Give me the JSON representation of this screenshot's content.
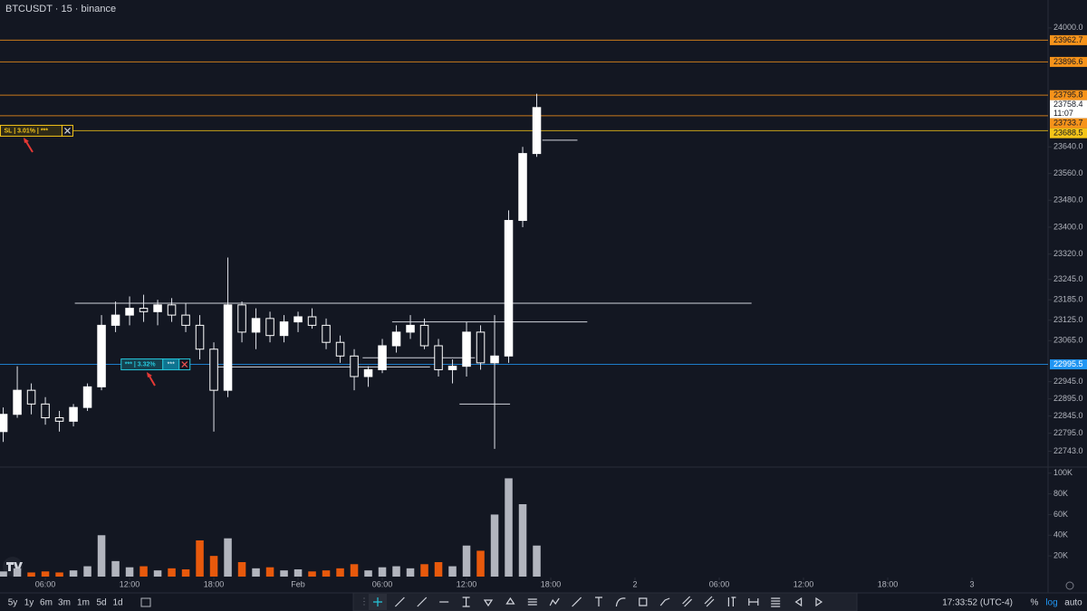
{
  "chart_data": [
    {
      "type": "candlestick",
      "title": "BTCUSDT · 15 · binance",
      "x": [
        3,
        4,
        5,
        6,
        7,
        8,
        9,
        10,
        11,
        12,
        13,
        14,
        15,
        16,
        17,
        18,
        19,
        20,
        21,
        22,
        23,
        24,
        25,
        26,
        27,
        28,
        29,
        30,
        31,
        32,
        33,
        34,
        35,
        36,
        37,
        38,
        39,
        40,
        41
      ],
      "open": [
        22800,
        22850,
        22920,
        22880,
        22840,
        22830,
        22870,
        22930,
        23110,
        23140,
        23160,
        23150,
        23170,
        23140,
        23110,
        23040,
        22920,
        23170,
        23090,
        23130,
        23080,
        23120,
        23135,
        23110,
        23060,
        23020,
        22960,
        22980,
        23050,
        23090,
        23110,
        23050,
        22980,
        22990,
        23090,
        23000,
        23020,
        23420,
        23620
      ],
      "high": [
        22870,
        22990,
        22940,
        22900,
        22860,
        22880,
        22940,
        23140,
        23180,
        23195,
        23200,
        23185,
        23190,
        23175,
        23140,
        23060,
        23310,
        23180,
        23160,
        23150,
        23140,
        23150,
        23160,
        23130,
        23080,
        23040,
        22990,
        23070,
        23110,
        23140,
        23130,
        23070,
        23010,
        23120,
        23110,
        23140,
        23450,
        23640,
        23800
      ],
      "low": [
        22770,
        22840,
        22850,
        22820,
        22800,
        22815,
        22860,
        22920,
        23090,
        23110,
        23120,
        23110,
        23120,
        23090,
        23010,
        22800,
        22900,
        23060,
        23040,
        23060,
        23060,
        23090,
        23100,
        23040,
        23000,
        22920,
        22930,
        22970,
        23030,
        23070,
        23040,
        22960,
        22940,
        22960,
        22980,
        22750,
        23000,
        23400,
        23610
      ],
      "close": [
        22850,
        22920,
        22880,
        22840,
        22830,
        22870,
        22930,
        23110,
        23140,
        23160,
        23150,
        23170,
        23140,
        23110,
        23040,
        22920,
        23170,
        23090,
        23130,
        23080,
        23120,
        23135,
        23110,
        23060,
        23020,
        22960,
        22980,
        23050,
        23090,
        23110,
        23050,
        22980,
        22990,
        23090,
        23000,
        23020,
        23420,
        23620,
        23758.4
      ],
      "up_color": "#ffffff",
      "down_color": "#131722",
      "wick_color": "#e0e3eb",
      "log": true,
      "xlim": [
        2.77,
        77.42
      ],
      "xticks": [
        {
          "value": 6,
          "label": "06:00"
        },
        {
          "value": 12,
          "label": "12:00"
        },
        {
          "value": 18,
          "label": "18:00"
        },
        {
          "value": 24,
          "label": "Feb"
        },
        {
          "value": 30,
          "label": "06:00"
        },
        {
          "value": 36,
          "label": "12:00"
        },
        {
          "value": 42,
          "label": "18:00"
        },
        {
          "value": 48,
          "label": "2"
        },
        {
          "value": 54,
          "label": "06:00"
        },
        {
          "value": 60,
          "label": "12:00"
        },
        {
          "value": 66,
          "label": "18:00"
        },
        {
          "value": 72,
          "label": "3"
        }
      ],
      "ylim": [
        22700,
        24030
      ],
      "yticks": [
        {
          "value": 24000,
          "label": "24000.0"
        },
        {
          "value": 23640,
          "label": "23640.0"
        },
        {
          "value": 23560,
          "label": "23560.0"
        },
        {
          "value": 23480,
          "label": "23480.0"
        },
        {
          "value": 23400,
          "label": "23400.0"
        },
        {
          "value": 23320,
          "label": "23320.0"
        },
        {
          "value": 23245,
          "label": "23245.0"
        },
        {
          "value": 23185,
          "label": "23185.0"
        },
        {
          "value": 23125,
          "label": "23125.0"
        },
        {
          "value": 23065,
          "label": "23065.0"
        },
        {
          "value": 22945,
          "label": "22945.0"
        },
        {
          "value": 22895,
          "label": "22895.0"
        },
        {
          "value": 22845,
          "label": "22845.0"
        },
        {
          "value": 22795,
          "label": "22795.0"
        },
        {
          "value": 22743,
          "label": "22743.0"
        }
      ],
      "levels": [
        {
          "price": 23962.7,
          "color": "#f7931a"
        },
        {
          "price": 23896.6,
          "color": "#f7931a"
        },
        {
          "price": 23795.8,
          "color": "#f7931a"
        },
        {
          "price": 23733.7,
          "color": "#f7931a"
        },
        {
          "price": 23688.5,
          "color": "#f5c518"
        },
        {
          "price": 22995.5,
          "color": "#2196f3"
        }
      ],
      "last_price": {
        "price": 23758.4,
        "countdown": "11:07"
      },
      "drawings": [
        {
          "price": 23175,
          "x_start": 8.1,
          "x_end": 56.3
        },
        {
          "price": 23120,
          "x_start": 30.7,
          "x_end": 44.6
        },
        {
          "price": 22988,
          "x_start": 18.2,
          "x_end": 33.4
        },
        {
          "price": 23015,
          "x_start": 28.6,
          "x_end": 36.6
        },
        {
          "price": 22880,
          "x_start": 35.5,
          "x_end": 39.1
        },
        {
          "price": 23660,
          "x_start": 41.4,
          "x_end": 43.9
        }
      ],
      "positions": [
        {
          "label": "SL | 3.01% | ***",
          "price": 23688.5,
          "x": 2.8,
          "color": "#f5c518"
        },
        {
          "label": "*** | 3.32%",
          "button": "***",
          "price": 22995.5,
          "x": 11.4,
          "color": "#26c6da"
        }
      ]
    },
    {
      "type": "bar",
      "x": [
        3,
        4,
        5,
        6,
        7,
        8,
        9,
        10,
        11,
        12,
        13,
        14,
        15,
        16,
        17,
        18,
        19,
        20,
        21,
        22,
        23,
        24,
        25,
        26,
        27,
        28,
        29,
        30,
        31,
        32,
        33,
        34,
        35,
        36,
        37,
        38,
        39,
        40,
        41
      ],
      "values": [
        5000,
        8000,
        4000,
        5000,
        4000,
        6000,
        10000,
        40000,
        15000,
        9000,
        10000,
        6000,
        8000,
        7000,
        35000,
        20000,
        37000,
        14000,
        8000,
        9000,
        6000,
        7000,
        5000,
        6000,
        8000,
        12000,
        6000,
        9000,
        10000,
        8000,
        12000,
        14000,
        10000,
        30000,
        25000,
        60000,
        95000,
        70000,
        30000
      ],
      "up_color": "#b2b5be",
      "down_color": "#e8590c",
      "ylim": [
        0,
        105000
      ],
      "yticks": [
        {
          "value": 100000,
          "label": "100K"
        },
        {
          "value": 80000,
          "label": "80K"
        },
        {
          "value": 60000,
          "label": "60K"
        },
        {
          "value": 40000,
          "label": "40K"
        },
        {
          "value": 20000,
          "label": "20K"
        }
      ]
    }
  ],
  "range_buttons": [
    "5y",
    "1y",
    "6m",
    "3m",
    "1m",
    "5d",
    "1d"
  ],
  "clock": "17:33:52 (UTC-4)",
  "scale_buttons": [
    "%",
    "log",
    "auto"
  ]
}
